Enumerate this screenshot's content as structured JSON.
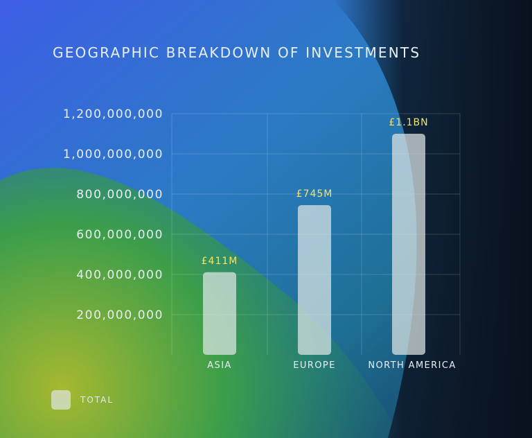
{
  "chart_data": {
    "type": "bar",
    "title": "GEOGRAPHIC BREAKDOWN OF INVESTMENTS",
    "categories": [
      "ASIA",
      "EUROPE",
      "NORTH AMERICA"
    ],
    "series": [
      {
        "name": "TOTAL",
        "values": [
          411000000,
          745000000,
          1100000000
        ],
        "labels": [
          "£411M",
          "£745M",
          "£1.1BN"
        ]
      }
    ],
    "y_ticks": [
      "200,000,000",
      "400,000,000",
      "600,000,000",
      "800,000,000",
      "1,000,000,000",
      "1,200,000,000"
    ],
    "y_tick_values": [
      200000000,
      400000000,
      600000000,
      800000000,
      1000000000,
      1200000000
    ],
    "ylim": [
      0,
      1200000000
    ],
    "grid": true,
    "legend_position": "bottom-left",
    "colors": {
      "bar": "#dfe6e4",
      "data_label": "#f3e46b",
      "text": "#e9eef5"
    }
  }
}
